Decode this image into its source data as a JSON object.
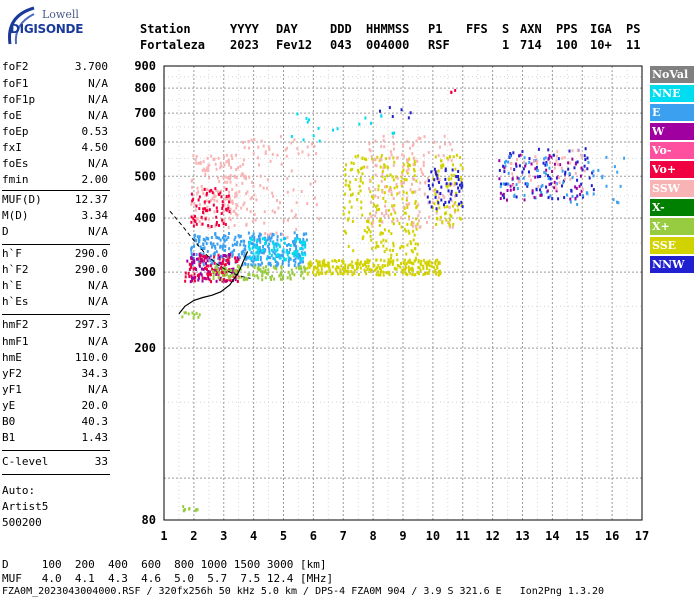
{
  "logo": {
    "line1": "Lowell",
    "line2": "DIGISONDE"
  },
  "header": {
    "row1": [
      "Station",
      "YYYY",
      "DAY",
      "DDD",
      "HHMMSS",
      "P1",
      "FFS",
      "S",
      "AXN",
      "PPS",
      "IGA",
      "PS"
    ],
    "row2": [
      "Fortaleza",
      "2023",
      "Fev12",
      "043",
      "004000",
      "RSF",
      "1",
      "714",
      "100",
      "10+",
      "11"
    ]
  },
  "params": [
    {
      "name": "foF2",
      "value": "3.700"
    },
    {
      "name": "foF1",
      "value": "N/A"
    },
    {
      "name": "foF1p",
      "value": "N/A"
    },
    {
      "name": "foE",
      "value": "N/A"
    },
    {
      "name": "foEp",
      "value": "0.53"
    },
    {
      "name": "fxI",
      "value": "4.50"
    },
    {
      "name": "foEs",
      "value": "N/A"
    },
    {
      "name": "fmin",
      "value": "2.00"
    },
    {
      "name": "MUF(D)",
      "value": "12.37"
    },
    {
      "name": "M(D)",
      "value": "3.34"
    },
    {
      "name": "D",
      "value": "N/A"
    },
    {
      "name": "h`F",
      "value": "290.0"
    },
    {
      "name": "h`F2",
      "value": "290.0"
    },
    {
      "name": "h`E",
      "value": "N/A"
    },
    {
      "name": "h`Es",
      "value": "N/A"
    },
    {
      "name": "hmF2",
      "value": "297.3"
    },
    {
      "name": "hmF1",
      "value": "N/A"
    },
    {
      "name": "hmE",
      "value": "110.0"
    },
    {
      "name": "yF2",
      "value": "34.3"
    },
    {
      "name": "yF1",
      "value": "N/A"
    },
    {
      "name": "yE",
      "value": "20.0"
    },
    {
      "name": "B0",
      "value": "40.3"
    },
    {
      "name": "B1",
      "value": "1.43"
    },
    {
      "name": "C-level",
      "value": "33"
    }
  ],
  "auto": {
    "line1": "Auto:",
    "line2": "Artist5",
    "line3": "500200"
  },
  "footer": {
    "d_row": "D     100  200  400  600  800 1000 1500 3000 [km]",
    "muf_row": "MUF   4.0  4.1  4.3  4.6  5.0  5.7  7.5 12.4 [MHz]",
    "file_row": "FZA0M_2023043004000.RSF / 320fx256h 50 kHz 5.0 km / DPS-4 FZA0M 904 / 3.9 S 321.6 E   Ion2Png 1.3.20"
  },
  "legend": [
    {
      "label": "NoVal",
      "color": "#808080"
    },
    {
      "label": "NNE",
      "color": "#00dcf0"
    },
    {
      "label": "E",
      "color": "#3ca0f0"
    },
    {
      "label": "W",
      "color": "#a000a0"
    },
    {
      "label": "Vo-",
      "color": "#ff50a0"
    },
    {
      "label": "Vo+",
      "color": "#f00040"
    },
    {
      "label": "SSW",
      "color": "#f8b4b4"
    },
    {
      "label": "X-",
      "color": "#008000"
    },
    {
      "label": "X+",
      "color": "#98cc40"
    },
    {
      "label": "SSE",
      "color": "#d2d200"
    },
    {
      "label": "NNW",
      "color": "#2020d0"
    }
  ],
  "chart_data": {
    "type": "scatter",
    "title": "",
    "xlabel": "",
    "ylabel": "",
    "x_log": false,
    "y_log": true,
    "xlim": [
      1,
      17
    ],
    "ylim": [
      80,
      900
    ],
    "xticks": [
      1,
      2,
      3,
      4,
      5,
      6,
      7,
      8,
      9,
      10,
      11,
      12,
      13,
      14,
      15,
      16,
      17
    ],
    "yticks": [
      80,
      200,
      300,
      400,
      500,
      600,
      700,
      800,
      900
    ],
    "grid": true,
    "legend_position": "right",
    "profile_curve": {
      "x": [
        1.5,
        1.7,
        2.0,
        2.3,
        2.6,
        2.9,
        3.2,
        3.5,
        3.8
      ],
      "y": [
        240,
        250,
        258,
        262,
        265,
        270,
        280,
        300,
        335
      ]
    },
    "dashed_curve": {
      "x": [
        1.2,
        1.6,
        2.0,
        2.4,
        2.8,
        3.2,
        3.6,
        3.9
      ],
      "y": [
        415,
        385,
        355,
        330,
        312,
        300,
        293,
        290
      ]
    },
    "clusters": [
      {
        "series": "SSW",
        "x0": 1.9,
        "x1": 3.8,
        "y0": 380,
        "y1": 560,
        "n": 160
      },
      {
        "series": "Vo+",
        "x0": 1.9,
        "x1": 3.2,
        "y0": 380,
        "y1": 470,
        "n": 60
      },
      {
        "series": "E",
        "x0": 1.9,
        "x1": 5.8,
        "y0": 310,
        "y1": 370,
        "n": 320
      },
      {
        "series": "NNE",
        "x0": 3.8,
        "x1": 5.8,
        "y0": 320,
        "y1": 360,
        "n": 90
      },
      {
        "series": "Vo+",
        "x0": 1.7,
        "x1": 3.5,
        "y0": 285,
        "y1": 330,
        "n": 120
      },
      {
        "series": "W",
        "x0": 1.7,
        "x1": 3.5,
        "y0": 285,
        "y1": 330,
        "n": 60
      },
      {
        "series": "X+",
        "x0": 2.6,
        "x1": 5.8,
        "y0": 288,
        "y1": 310,
        "n": 110
      },
      {
        "series": "SSE",
        "x0": 5.8,
        "x1": 10.3,
        "y0": 295,
        "y1": 320,
        "n": 260
      },
      {
        "series": "SSE",
        "x0": 7.0,
        "x1": 9.5,
        "y0": 320,
        "y1": 560,
        "n": 220
      },
      {
        "series": "SSW",
        "x0": 7.8,
        "x1": 10.8,
        "y0": 380,
        "y1": 620,
        "n": 160
      },
      {
        "series": "SSW",
        "x0": 3.5,
        "x1": 6.2,
        "y0": 360,
        "y1": 620,
        "n": 90
      },
      {
        "series": "SSE",
        "x0": 10.0,
        "x1": 11.0,
        "y0": 380,
        "y1": 560,
        "n": 70
      },
      {
        "series": "NNW",
        "x0": 9.8,
        "x1": 11.0,
        "y0": 420,
        "y1": 520,
        "n": 50
      },
      {
        "series": "NNW",
        "x0": 12.2,
        "x1": 15.4,
        "y0": 440,
        "y1": 580,
        "n": 80
      },
      {
        "series": "E",
        "x0": 12.2,
        "x1": 16.5,
        "y0": 430,
        "y1": 560,
        "n": 70
      },
      {
        "series": "W",
        "x0": 12.2,
        "x1": 15.0,
        "y0": 440,
        "y1": 560,
        "n": 50
      },
      {
        "series": "SSW",
        "x0": 12.6,
        "x1": 15.2,
        "y0": 460,
        "y1": 580,
        "n": 40
      },
      {
        "series": "NNE",
        "x0": 5.2,
        "x1": 8.8,
        "y0": 600,
        "y1": 700,
        "n": 18
      },
      {
        "series": "X+",
        "x0": 1.6,
        "x1": 2.2,
        "y0": 235,
        "y1": 242,
        "n": 10
      },
      {
        "series": "X+",
        "x0": 1.5,
        "x1": 2.2,
        "y0": 84,
        "y1": 86,
        "n": 10
      },
      {
        "series": "NNW",
        "x0": 8.2,
        "x1": 9.3,
        "y0": 680,
        "y1": 740,
        "n": 6
      },
      {
        "series": "Vo+",
        "x0": 10.6,
        "x1": 10.8,
        "y0": 780,
        "y1": 790,
        "n": 3
      }
    ]
  }
}
